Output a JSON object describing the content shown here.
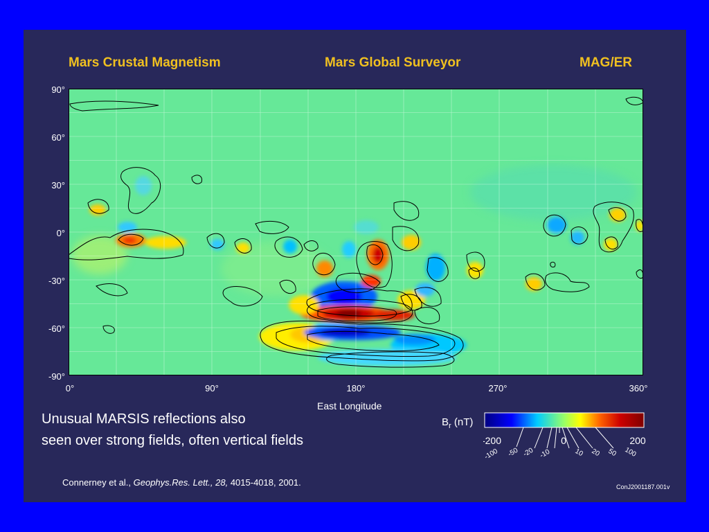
{
  "titles": {
    "left": "Mars Crustal Magnetism",
    "center": "Mars Global Surveyor",
    "right": "MAG/ER"
  },
  "map": {
    "lat_ticks": [
      "90°",
      "60°",
      "30°",
      "0°",
      "-30°",
      "-60°",
      "-90°"
    ],
    "lon_ticks": [
      "0°",
      "90°",
      "180°",
      "270°",
      "360°"
    ],
    "xlabel": "East Longitude"
  },
  "note": {
    "line1": "Unusual MARSIS reflections also",
    "line2": "seen over strong fields, often vertical fields"
  },
  "colorbar": {
    "title_main": "B",
    "title_sub": "r",
    "title_unit": " (nT)",
    "top_labels": [
      "-200",
      "0",
      "200"
    ],
    "bottom_labels": [
      "-100",
      "-50",
      "-20",
      "-10",
      "10",
      "20",
      "50",
      "100"
    ],
    "colors": [
      "#000080",
      "#0000ff",
      "#00ccff",
      "#99ff66",
      "#ffff00",
      "#ff6600",
      "#cc0000",
      "#800000"
    ]
  },
  "citation": {
    "authors": "Connerney et al., ",
    "journal": "Geophys.Res. Lett., 28,",
    "pages": " 4015-4018, 2001."
  },
  "code": "ConJ2001187.001v"
}
